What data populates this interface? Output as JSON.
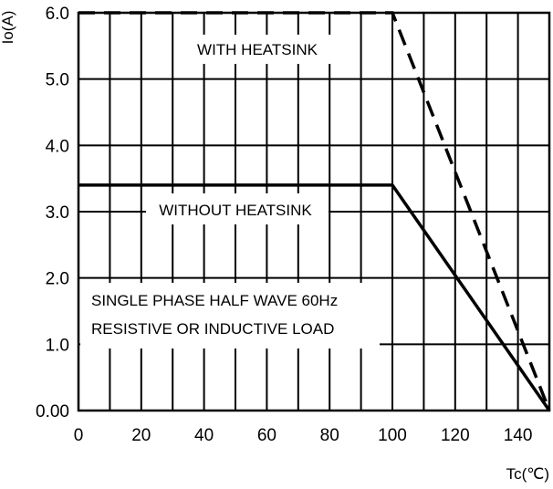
{
  "chart_data": {
    "type": "line",
    "ylabel": "Io(A)",
    "xlabel": "Tc(℃)",
    "xlim": [
      0,
      150
    ],
    "ylim": [
      0,
      6
    ],
    "x_ticks": [
      0,
      20,
      40,
      60,
      80,
      100,
      120,
      140
    ],
    "x_tick_labels": [
      "0",
      "20",
      "40",
      "60",
      "80",
      "100",
      "120",
      "140"
    ],
    "y_ticks": [
      0,
      1,
      2,
      3,
      4,
      5,
      6
    ],
    "y_tick_labels": [
      "0.00",
      "1.0",
      "2.0",
      "3.0",
      "4.0",
      "5.0",
      "6.0"
    ],
    "x_grid_step": 10,
    "grid": true,
    "series": [
      {
        "name": "WITH HEATSINK",
        "style": "dashed",
        "points": [
          [
            0,
            6.0
          ],
          [
            100,
            6.0
          ],
          [
            150,
            0.0
          ]
        ]
      },
      {
        "name": "WITHOUT HEATSINK",
        "style": "solid",
        "points": [
          [
            0,
            3.4
          ],
          [
            100,
            3.4
          ],
          [
            150,
            0.0
          ]
        ]
      }
    ],
    "annotations": [
      "SINGLE PHASE HALF WAVE  60Hz",
      "RESISTIVE OR INDUCTIVE LOAD"
    ]
  }
}
